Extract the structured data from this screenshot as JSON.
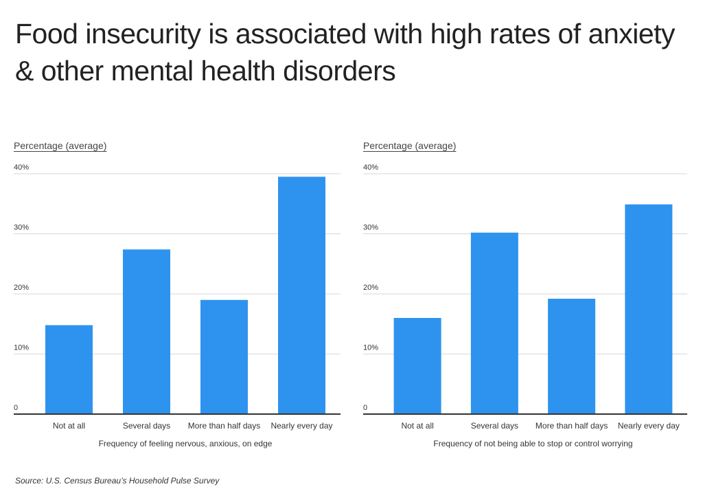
{
  "title": "Food insecurity is associated with high rates of anxiety & other mental health disorders",
  "source": "Source:  U.S. Census Bureau’s Household Pulse Survey",
  "colors": {
    "bar": "#2E93EF",
    "grid": "#d7d7d7",
    "axis": "#333333"
  },
  "chart_data": [
    {
      "type": "bar",
      "title": "",
      "ylabel": "Percentage (average)",
      "xlabel": "Frequency of feeling nervous, anxious, on edge",
      "categories": [
        "Not at all",
        "Several days",
        "More than half days",
        "Nearly every day"
      ],
      "values": [
        14.8,
        27.4,
        19.0,
        39.5
      ],
      "ylim": [
        0,
        40
      ],
      "yticks": [
        0,
        10,
        20,
        30,
        40
      ],
      "ytick_labels": [
        "0",
        "10%",
        "20%",
        "30%",
        "40%"
      ],
      "grid": true
    },
    {
      "type": "bar",
      "title": "",
      "ylabel": "Percentage (average)",
      "xlabel": "Frequency of not being able to stop or control worrying",
      "categories": [
        "Not at all",
        "Several days",
        "More than half days",
        "Nearly every day"
      ],
      "values": [
        16.0,
        30.2,
        19.2,
        34.9
      ],
      "ylim": [
        0,
        40
      ],
      "yticks": [
        0,
        10,
        20,
        30,
        40
      ],
      "ytick_labels": [
        "0",
        "10%",
        "20%",
        "30%",
        "40%"
      ],
      "grid": true
    }
  ]
}
